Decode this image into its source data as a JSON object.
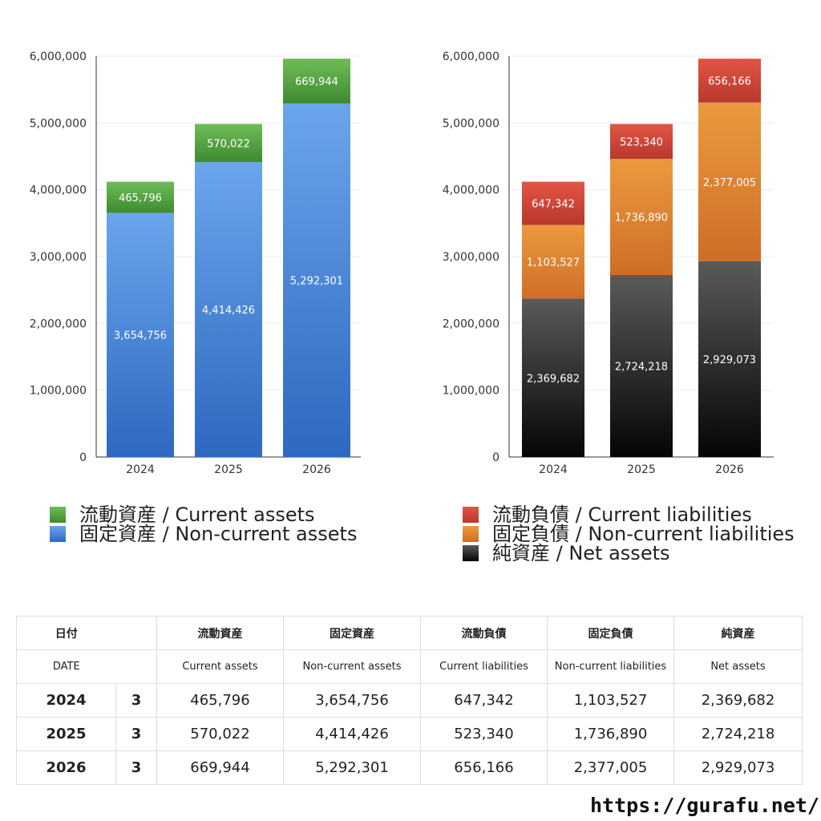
{
  "chart_data": [
    {
      "type": "bar",
      "stacked": true,
      "categories": [
        "2024",
        "2025",
        "2026"
      ],
      "ylim": [
        0,
        6000000
      ],
      "yticks": [
        "0",
        "1,000,000",
        "2,000,000",
        "3,000,000",
        "4,000,000",
        "5,000,000",
        "6,000,000"
      ],
      "grid": true,
      "legend_position": "bottom",
      "series": [
        {
          "name": "固定資産 / Non-current assets",
          "values": [
            3654756,
            4414426,
            5292301
          ],
          "labels": [
            "3,654,756",
            "4,414,426",
            "5,292,301"
          ],
          "color_top": "#6aa5ec",
          "color_bottom": "#2e68c0"
        },
        {
          "name": "流動資産 / Current assets",
          "values": [
            465796,
            570022,
            669944
          ],
          "labels": [
            "465,796",
            "570,022",
            "669,944"
          ],
          "color_top": "#6dbd57",
          "color_bottom": "#3f8a30"
        }
      ]
    },
    {
      "type": "bar",
      "stacked": true,
      "categories": [
        "2024",
        "2025",
        "2026"
      ],
      "ylim": [
        0,
        6000000
      ],
      "yticks": [
        "0",
        "1,000,000",
        "2,000,000",
        "3,000,000",
        "4,000,000",
        "5,000,000",
        "6,000,000"
      ],
      "grid": true,
      "legend_position": "bottom",
      "series": [
        {
          "name": "純資産 / Net assets",
          "values": [
            2369682,
            2724218,
            2929073
          ],
          "labels": [
            "2,369,682",
            "2,724,218",
            "2,929,073"
          ],
          "color_top": "#5a5a5a",
          "color_bottom": "#050505"
        },
        {
          "name": "固定負債 / Non-current liabilities",
          "values": [
            1103527,
            1736890,
            2377005
          ],
          "labels": [
            "1,103,527",
            "1,736,890",
            "2,377,005"
          ],
          "color_top": "#ea9a3e",
          "color_bottom": "#cf6d26"
        },
        {
          "name": "流動負債 / Current liabilities",
          "values": [
            647342,
            523340,
            656166
          ],
          "labels": [
            "647,342",
            "523,340",
            "656,166"
          ],
          "color_top": "#e25545",
          "color_bottom": "#b8382d"
        }
      ]
    }
  ],
  "legend_left": [
    {
      "label": "流動資産 / Current assets",
      "color_top": "#6dbd57",
      "color_bottom": "#3f8a30"
    },
    {
      "label": "固定資産 / Non-current assets",
      "color_top": "#6aa5ec",
      "color_bottom": "#2e68c0"
    }
  ],
  "legend_right": [
    {
      "label": "流動負債 / Current liabilities",
      "color_top": "#e25545",
      "color_bottom": "#b8382d"
    },
    {
      "label": "固定負債 / Non-current liabilities",
      "color_top": "#ea9a3e",
      "color_bottom": "#cf6d26"
    },
    {
      "label": "純資産 / Net assets",
      "color_top": "#5a5a5a",
      "color_bottom": "#050505"
    }
  ],
  "table": {
    "header_jp": {
      "date": "日付",
      "ca": "流動資産",
      "nca": "固定資産",
      "cl": "流動負債",
      "ncl": "固定負債",
      "na": "純資産"
    },
    "header_en": {
      "date": "DATE",
      "ca": "Current assets",
      "nca": "Non-current assets",
      "cl": "Current liabilities",
      "ncl": "Non-current liabilities",
      "na": "Net assets"
    },
    "rows": [
      {
        "year": "2024",
        "month": "3",
        "ca": "465,796",
        "nca": "3,654,756",
        "cl": "647,342",
        "ncl": "1,103,527",
        "na": "2,369,682"
      },
      {
        "year": "2025",
        "month": "3",
        "ca": "570,022",
        "nca": "4,414,426",
        "cl": "523,340",
        "ncl": "1,736,890",
        "na": "2,724,218"
      },
      {
        "year": "2026",
        "month": "3",
        "ca": "669,944",
        "nca": "5,292,301",
        "cl": "656,166",
        "ncl": "2,377,005",
        "na": "2,929,073"
      }
    ]
  },
  "site_url": "https://gurafu.net/"
}
